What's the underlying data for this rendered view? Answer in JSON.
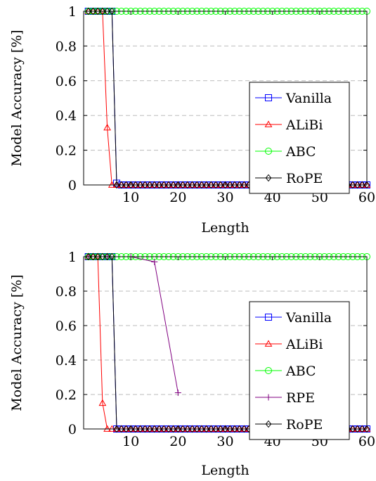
{
  "chart_data": [
    {
      "type": "line",
      "title": "",
      "xlabel": "Length",
      "ylabel": "Model Accuracy [%]",
      "xlim": [
        0,
        60
      ],
      "ylim": [
        0,
        1
      ],
      "xticks": [
        10,
        20,
        30,
        40,
        50,
        60
      ],
      "yticks": [
        0,
        0.2,
        0.4,
        0.6,
        0.8,
        1
      ],
      "xtick_labels": [
        "10",
        "20",
        "30",
        "40",
        "50",
        "60"
      ],
      "ytick_labels": [
        "0",
        "0.2",
        "0.4",
        "0.6",
        "0.8",
        "1"
      ],
      "grid": "horizontal dashed",
      "legend_position": "bottom-right",
      "series": [
        {
          "name": "Vanilla",
          "color": "#0000ff",
          "marker": "square",
          "x": [
            1,
            2,
            3,
            4,
            5,
            6,
            7,
            8,
            9,
            10,
            11,
            12,
            13,
            14,
            15,
            16,
            17,
            18,
            19,
            20,
            21,
            22,
            23,
            24,
            25,
            26,
            27,
            28,
            29,
            30,
            31,
            32,
            33,
            34,
            35,
            36,
            37,
            38,
            39,
            40,
            41,
            42,
            43,
            44,
            45,
            46,
            47,
            48,
            49,
            50,
            51,
            52,
            53,
            54,
            55,
            56,
            57,
            58,
            59,
            60
          ],
          "y": [
            1,
            1,
            1,
            1,
            1,
            1,
            0.01,
            0,
            0,
            0,
            0,
            0,
            0,
            0,
            0,
            0,
            0,
            0,
            0,
            0,
            0,
            0,
            0,
            0,
            0,
            0,
            0,
            0,
            0,
            0,
            0,
            0,
            0,
            0,
            0,
            0,
            0,
            0,
            0,
            0,
            0,
            0,
            0,
            0,
            0,
            0,
            0,
            0,
            0,
            0,
            0,
            0,
            0,
            0,
            0,
            0,
            0,
            0,
            0,
            0
          ]
        },
        {
          "name": "ALiBi",
          "color": "#ff0000",
          "marker": "triangle",
          "x": [
            1,
            2,
            3,
            4,
            5,
            6,
            7,
            8,
            9,
            10,
            11,
            12,
            13,
            14,
            15,
            16,
            17,
            18,
            19,
            20,
            21,
            22,
            23,
            24,
            25,
            26,
            27,
            28,
            29,
            30,
            31,
            32,
            33,
            34,
            35,
            36,
            37,
            38,
            39,
            40,
            41,
            42,
            43,
            44,
            45,
            46,
            47,
            48,
            49,
            50,
            51,
            52,
            53,
            54,
            55,
            56,
            57,
            58,
            59,
            60
          ],
          "y": [
            1,
            1,
            1,
            1,
            0.33,
            0,
            0,
            0,
            0,
            0,
            0,
            0,
            0,
            0,
            0,
            0,
            0,
            0,
            0,
            0,
            0,
            0,
            0,
            0,
            0,
            0,
            0,
            0,
            0,
            0,
            0,
            0,
            0,
            0,
            0,
            0,
            0,
            0,
            0,
            0,
            0,
            0,
            0,
            0,
            0,
            0,
            0,
            0,
            0,
            0,
            0,
            0,
            0,
            0,
            0,
            0,
            0,
            0,
            0,
            0
          ]
        },
        {
          "name": "ABC",
          "color": "#00ff00",
          "marker": "circle",
          "x": [
            1,
            2,
            3,
            4,
            5,
            6,
            7,
            8,
            9,
            10,
            11,
            12,
            13,
            14,
            15,
            16,
            17,
            18,
            19,
            20,
            21,
            22,
            23,
            24,
            25,
            26,
            27,
            28,
            29,
            30,
            31,
            32,
            33,
            34,
            35,
            36,
            37,
            38,
            39,
            40,
            41,
            42,
            43,
            44,
            45,
            46,
            47,
            48,
            49,
            50,
            51,
            52,
            53,
            54,
            55,
            56,
            57,
            58,
            59,
            60
          ],
          "y": [
            1,
            1,
            1,
            1,
            1,
            1,
            1,
            1,
            1,
            1,
            1,
            1,
            1,
            1,
            1,
            1,
            1,
            1,
            1,
            1,
            1,
            1,
            1,
            1,
            1,
            1,
            1,
            1,
            1,
            1,
            1,
            1,
            1,
            1,
            1,
            1,
            1,
            1,
            1,
            1,
            1,
            1,
            1,
            1,
            1,
            1,
            1,
            1,
            1,
            1,
            1,
            1,
            1,
            1,
            1,
            1,
            1,
            1,
            1,
            1
          ]
        },
        {
          "name": "RoPE",
          "color": "#000000",
          "marker": "diamond",
          "x": [
            1,
            2,
            3,
            4,
            5,
            6,
            7,
            8,
            9,
            10,
            11,
            12,
            13,
            14,
            15,
            16,
            17,
            18,
            19,
            20,
            21,
            22,
            23,
            24,
            25,
            26,
            27,
            28,
            29,
            30,
            31,
            32,
            33,
            34,
            35,
            36,
            37,
            38,
            39,
            40,
            41,
            42,
            43,
            44,
            45,
            46,
            47,
            48,
            49,
            50,
            51,
            52,
            53,
            54,
            55,
            56,
            57,
            58,
            59,
            60
          ],
          "y": [
            1,
            1,
            1,
            1,
            1,
            1,
            0,
            0,
            0,
            0,
            0,
            0,
            0,
            0,
            0,
            0,
            0,
            0,
            0,
            0,
            0,
            0,
            0,
            0,
            0,
            0,
            0,
            0,
            0,
            0,
            0,
            0,
            0,
            0,
            0,
            0,
            0,
            0,
            0,
            0,
            0,
            0,
            0,
            0,
            0,
            0,
            0,
            0,
            0,
            0,
            0,
            0,
            0,
            0,
            0,
            0,
            0,
            0,
            0,
            0
          ]
        }
      ]
    },
    {
      "type": "line",
      "title": "",
      "xlabel": "Length",
      "ylabel": "Model Accuracy [%]",
      "xlim": [
        0,
        60
      ],
      "ylim": [
        0,
        1
      ],
      "xticks": [
        10,
        20,
        30,
        40,
        50,
        60
      ],
      "yticks": [
        0,
        0.2,
        0.4,
        0.6,
        0.8,
        1
      ],
      "xtick_labels": [
        "10",
        "20",
        "30",
        "40",
        "50",
        "60"
      ],
      "ytick_labels": [
        "0",
        "0.2",
        "0.4",
        "0.6",
        "0.8",
        "1"
      ],
      "grid": "horizontal dashed",
      "legend_position": "bottom-right",
      "series": [
        {
          "name": "Vanilla",
          "color": "#0000ff",
          "marker": "square",
          "x": [
            1,
            2,
            3,
            4,
            5,
            6,
            7,
            8,
            9,
            10,
            11,
            12,
            13,
            14,
            15,
            16,
            17,
            18,
            19,
            20,
            21,
            22,
            23,
            24,
            25,
            26,
            27,
            28,
            29,
            30,
            31,
            32,
            33,
            34,
            35,
            36,
            37,
            38,
            39,
            40,
            41,
            42,
            43,
            44,
            45,
            46,
            47,
            48,
            49,
            50,
            51,
            52,
            53,
            54,
            55,
            56,
            57,
            58,
            59,
            60
          ],
          "y": [
            1,
            1,
            1,
            1,
            1,
            1,
            0,
            0,
            0,
            0,
            0,
            0,
            0,
            0,
            0,
            0,
            0,
            0,
            0,
            0,
            0,
            0,
            0,
            0,
            0,
            0,
            0,
            0,
            0,
            0,
            0,
            0,
            0,
            0,
            0,
            0,
            0,
            0,
            0,
            0,
            0,
            0,
            0,
            0,
            0,
            0,
            0,
            0,
            0,
            0,
            0,
            0,
            0,
            0,
            0,
            0,
            0,
            0,
            0,
            0
          ]
        },
        {
          "name": "ALiBi",
          "color": "#ff0000",
          "marker": "triangle",
          "x": [
            1,
            2,
            3,
            4,
            5,
            6,
            7,
            8,
            9,
            10,
            11,
            12,
            13,
            14,
            15,
            16,
            17,
            18,
            19,
            20,
            21,
            22,
            23,
            24,
            25,
            26,
            27,
            28,
            29,
            30,
            31,
            32,
            33,
            34,
            35,
            36,
            37,
            38,
            39,
            40,
            41,
            42,
            43,
            44,
            45,
            46,
            47,
            48,
            49,
            50,
            51,
            52,
            53,
            54,
            55,
            56,
            57,
            58,
            59,
            60
          ],
          "y": [
            1,
            1,
            1,
            0.15,
            0,
            0,
            0,
            0,
            0,
            0,
            0,
            0,
            0,
            0,
            0,
            0,
            0,
            0,
            0,
            0,
            0,
            0,
            0,
            0,
            0,
            0,
            0,
            0,
            0,
            0,
            0,
            0,
            0,
            0,
            0,
            0,
            0,
            0,
            0,
            0,
            0,
            0,
            0,
            0,
            0,
            0,
            0,
            0,
            0,
            0,
            0,
            0,
            0,
            0,
            0,
            0,
            0,
            0,
            0,
            0
          ]
        },
        {
          "name": "ABC",
          "color": "#00ff00",
          "marker": "circle",
          "x": [
            1,
            2,
            3,
            4,
            5,
            6,
            7,
            8,
            9,
            10,
            11,
            12,
            13,
            14,
            15,
            16,
            17,
            18,
            19,
            20,
            21,
            22,
            23,
            24,
            25,
            26,
            27,
            28,
            29,
            30,
            31,
            32,
            33,
            34,
            35,
            36,
            37,
            38,
            39,
            40,
            41,
            42,
            43,
            44,
            45,
            46,
            47,
            48,
            49,
            50,
            51,
            52,
            53,
            54,
            55,
            56,
            57,
            58,
            59,
            60
          ],
          "y": [
            1,
            1,
            1,
            1,
            1,
            1,
            1,
            1,
            1,
            1,
            1,
            1,
            1,
            1,
            1,
            1,
            1,
            1,
            1,
            1,
            1,
            1,
            1,
            1,
            1,
            1,
            1,
            1,
            1,
            1,
            1,
            1,
            1,
            1,
            1,
            1,
            1,
            1,
            1,
            1,
            1,
            1,
            1,
            1,
            1,
            1,
            1,
            1,
            1,
            1,
            1,
            1,
            1,
            1,
            1,
            1,
            1,
            1,
            1,
            1
          ]
        },
        {
          "name": "RPE",
          "color": "#800080",
          "marker": "plus",
          "x": [
            1,
            5,
            10,
            15,
            20
          ],
          "y": [
            1,
            1,
            1,
            0.97,
            0.21
          ]
        },
        {
          "name": "RoPE",
          "color": "#000000",
          "marker": "diamond",
          "x": [
            1,
            2,
            3,
            4,
            5,
            6,
            7,
            8,
            9,
            10,
            11,
            12,
            13,
            14,
            15,
            16,
            17,
            18,
            19,
            20,
            21,
            22,
            23,
            24,
            25,
            26,
            27,
            28,
            29,
            30,
            31,
            32,
            33,
            34,
            35,
            36,
            37,
            38,
            39,
            40,
            41,
            42,
            43,
            44,
            45,
            46,
            47,
            48,
            49,
            50,
            51,
            52,
            53,
            54,
            55,
            56,
            57,
            58,
            59,
            60
          ],
          "y": [
            1,
            1,
            1,
            1,
            1,
            1,
            0,
            0,
            0,
            0,
            0,
            0,
            0,
            0,
            0,
            0,
            0,
            0,
            0,
            0,
            0,
            0,
            0,
            0,
            0,
            0,
            0,
            0,
            0,
            0,
            0,
            0,
            0,
            0,
            0,
            0,
            0,
            0,
            0,
            0,
            0,
            0,
            0,
            0,
            0,
            0,
            0,
            0,
            0,
            0,
            0,
            0,
            0,
            0,
            0,
            0,
            0,
            0,
            0,
            0
          ]
        }
      ]
    }
  ]
}
